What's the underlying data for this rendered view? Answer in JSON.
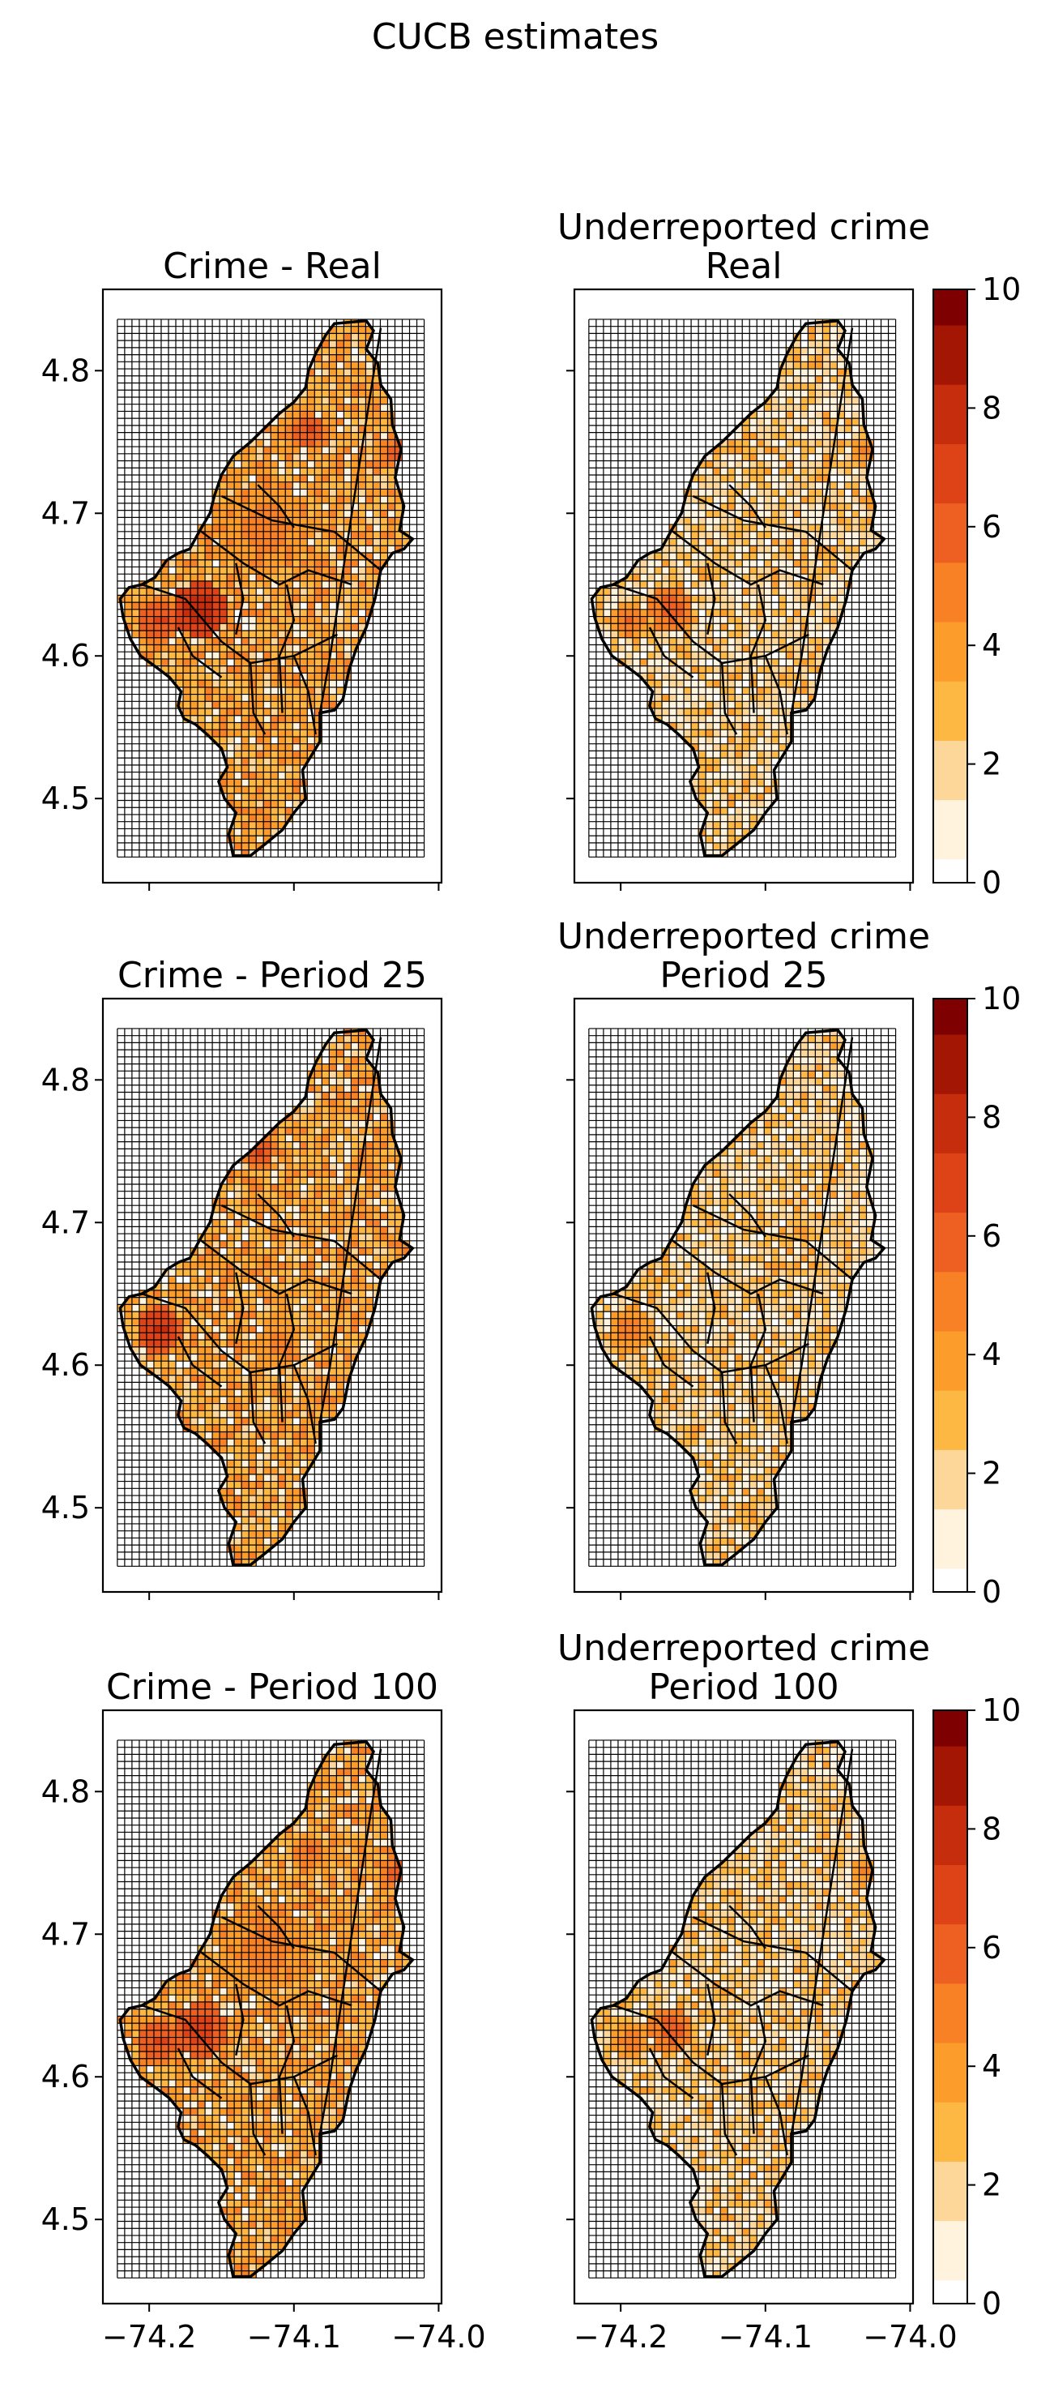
{
  "figure": {
    "title": "CUCB estimates"
  },
  "chart_data": [
    {
      "type": "heatmap",
      "title_lines": [
        "Crime - Real"
      ],
      "xlabel": "",
      "ylabel": "",
      "xlim": [
        -74.232,
        -73.998
      ],
      "ylim": [
        4.441,
        4.857
      ],
      "xticks": [
        "-74.2",
        "-74.1",
        "-74.0"
      ],
      "xtick_values": [
        -74.2,
        -74.1,
        -74.0
      ],
      "yticks": [
        "4.5",
        "4.6",
        "4.7",
        "4.8"
      ],
      "ytick_values": [
        4.5,
        4.6,
        4.7,
        4.8
      ],
      "show_xtick_labels": false,
      "show_ytick_labels": true,
      "grid": true,
      "colorbar": false,
      "seed": 1,
      "hotspots": [
        {
          "x": -74.165,
          "y": 4.633,
          "v": 8.5,
          "r": 0.012
        },
        {
          "x": -74.193,
          "y": 4.625,
          "v": 7,
          "r": 0.01
        },
        {
          "x": -74.09,
          "y": 4.758,
          "v": 7,
          "r": 0.008
        },
        {
          "x": -74.03,
          "y": 4.743,
          "v": 6.5,
          "r": 0.008
        },
        {
          "x": -74.12,
          "y": 4.69,
          "v": 5.5,
          "r": 0.02
        }
      ]
    },
    {
      "type": "heatmap",
      "title_lines": [
        "Underreported crime",
        "Real"
      ],
      "xlabel": "",
      "ylabel": "",
      "xlim": [
        -74.232,
        -73.998
      ],
      "ylim": [
        4.441,
        4.857
      ],
      "xticks": [
        "-74.2",
        "-74.1",
        "-74.0"
      ],
      "xtick_values": [
        -74.2,
        -74.1,
        -74.0
      ],
      "yticks": [
        "4.5",
        "4.6",
        "4.7",
        "4.8"
      ],
      "ytick_values": [
        4.5,
        4.6,
        4.7,
        4.8
      ],
      "show_xtick_labels": false,
      "show_ytick_labels": false,
      "grid": true,
      "colorbar": true,
      "colorbar_ticks": [
        "0",
        "2",
        "4",
        "6",
        "8",
        "10"
      ],
      "colorbar_range": [
        0,
        10
      ],
      "seed": 2,
      "hotspots": [
        {
          "x": -74.165,
          "y": 4.633,
          "v": 6.5,
          "r": 0.01
        },
        {
          "x": -74.193,
          "y": 4.625,
          "v": 6,
          "r": 0.008
        },
        {
          "x": -74.03,
          "y": 4.743,
          "v": 5,
          "r": 0.008
        }
      ]
    },
    {
      "type": "heatmap",
      "title_lines": [
        "Crime - Period 25"
      ],
      "xlabel": "",
      "ylabel": "",
      "xlim": [
        -74.232,
        -73.998
      ],
      "ylim": [
        4.441,
        4.857
      ],
      "xticks": [
        "-74.2",
        "-74.1",
        "-74.0"
      ],
      "xtick_values": [
        -74.2,
        -74.1,
        -74.0
      ],
      "yticks": [
        "4.5",
        "4.6",
        "4.7",
        "4.8"
      ],
      "ytick_values": [
        4.5,
        4.6,
        4.7,
        4.8
      ],
      "show_xtick_labels": false,
      "show_ytick_labels": true,
      "grid": true,
      "colorbar": false,
      "seed": 3,
      "hotspots": [
        {
          "x": -74.193,
          "y": 4.625,
          "v": 8,
          "r": 0.01
        },
        {
          "x": -74.125,
          "y": 4.75,
          "v": 7,
          "r": 0.008
        },
        {
          "x": -74.11,
          "y": 4.615,
          "v": 5.5,
          "r": 0.01
        }
      ]
    },
    {
      "type": "heatmap",
      "title_lines": [
        "Underreported crime",
        "Period 25"
      ],
      "xlabel": "",
      "ylabel": "",
      "xlim": [
        -74.232,
        -73.998
      ],
      "ylim": [
        4.441,
        4.857
      ],
      "xticks": [
        "-74.2",
        "-74.1",
        "-74.0"
      ],
      "xtick_values": [
        -74.2,
        -74.1,
        -74.0
      ],
      "yticks": [
        "4.5",
        "4.6",
        "4.7",
        "4.8"
      ],
      "ytick_values": [
        4.5,
        4.6,
        4.7,
        4.8
      ],
      "show_xtick_labels": false,
      "show_ytick_labels": false,
      "grid": true,
      "colorbar": true,
      "colorbar_ticks": [
        "0",
        "2",
        "4",
        "6",
        "8",
        "10"
      ],
      "colorbar_range": [
        0,
        10
      ],
      "seed": 4,
      "hotspots": [
        {
          "x": -74.193,
          "y": 4.625,
          "v": 5.5,
          "r": 0.01
        }
      ]
    },
    {
      "type": "heatmap",
      "title_lines": [
        "Crime - Period 100"
      ],
      "xlabel": "",
      "ylabel": "",
      "xlim": [
        -74.232,
        -73.998
      ],
      "ylim": [
        4.441,
        4.857
      ],
      "xticks": [
        "-74.2",
        "-74.1",
        "-74.0"
      ],
      "xtick_values": [
        -74.2,
        -74.1,
        -74.0
      ],
      "yticks": [
        "4.5",
        "4.6",
        "4.7",
        "4.8"
      ],
      "ytick_values": [
        4.5,
        4.6,
        4.7,
        4.8
      ],
      "show_xtick_labels": true,
      "show_ytick_labels": true,
      "grid": true,
      "colorbar": false,
      "seed": 5,
      "hotspots": [
        {
          "x": -74.165,
          "y": 4.633,
          "v": 7.5,
          "r": 0.012
        },
        {
          "x": -74.193,
          "y": 4.625,
          "v": 7,
          "r": 0.01
        },
        {
          "x": -74.03,
          "y": 4.743,
          "v": 6.5,
          "r": 0.008
        },
        {
          "x": -74.09,
          "y": 4.758,
          "v": 6,
          "r": 0.008
        },
        {
          "x": -74.12,
          "y": 4.69,
          "v": 5.5,
          "r": 0.02
        }
      ]
    },
    {
      "type": "heatmap",
      "title_lines": [
        "Underreported crime",
        "Period 100"
      ],
      "xlabel": "",
      "ylabel": "",
      "xlim": [
        -74.232,
        -73.998
      ],
      "ylim": [
        4.441,
        4.857
      ],
      "xticks": [
        "-74.2",
        "-74.1",
        "-74.0"
      ],
      "xtick_values": [
        -74.2,
        -74.1,
        -74.0
      ],
      "yticks": [
        "4.5",
        "4.6",
        "4.7",
        "4.8"
      ],
      "ytick_values": [
        4.5,
        4.6,
        4.7,
        4.8
      ],
      "show_xtick_labels": true,
      "show_ytick_labels": false,
      "grid": true,
      "colorbar": true,
      "colorbar_ticks": [
        "0",
        "2",
        "4",
        "6",
        "8",
        "10"
      ],
      "colorbar_range": [
        0,
        10
      ],
      "seed": 6,
      "hotspots": [
        {
          "x": -74.165,
          "y": 4.633,
          "v": 6.5,
          "r": 0.01
        },
        {
          "x": -74.193,
          "y": 4.625,
          "v": 5.5,
          "r": 0.008
        },
        {
          "x": -74.03,
          "y": 4.743,
          "v": 5,
          "r": 0.008
        }
      ]
    }
  ],
  "colors": {
    "colormap": [
      "#ffffff",
      "#fff3dd",
      "#fdd79a",
      "#fdb844",
      "#fb9c2b",
      "#f78124",
      "#ee6021",
      "#dd4316",
      "#c52d0c",
      "#a41604",
      "#7f0000"
    ],
    "boundary": "#000000",
    "grid": "#000000"
  }
}
